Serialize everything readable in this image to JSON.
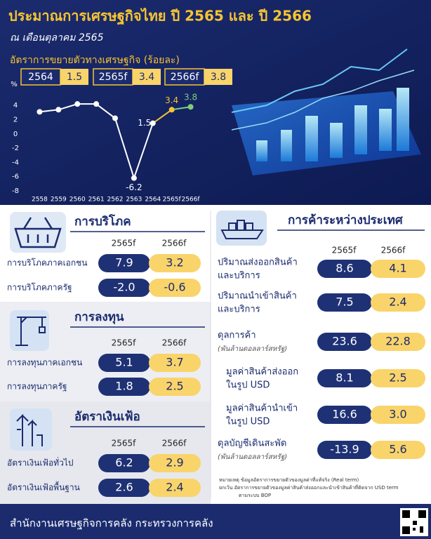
{
  "header": {
    "title": "ประมาณการเศรษฐกิจไทย ปี 2565 และ ปี 2566",
    "subtitle": "ณ เดือนตุลาคม 2565"
  },
  "chart_data": {
    "type": "line",
    "title": "อัตราการขยายตัวทางเศรษฐกิจ (ร้อยละ)",
    "y_label": "%",
    "badges": [
      {
        "year": "2564",
        "value": 1.5
      },
      {
        "year": "2565f",
        "value": 3.4
      },
      {
        "year": "2566f",
        "value": 3.8
      }
    ],
    "categories": [
      "2558",
      "2559",
      "2560",
      "2561",
      "2562",
      "2563",
      "2564",
      "2565f",
      "2566f"
    ],
    "values": [
      3.1,
      3.4,
      4.2,
      4.2,
      2.2,
      -6.2,
      1.5,
      3.4,
      3.8
    ],
    "value_labels": [
      null,
      null,
      null,
      null,
      null,
      "-6.2",
      "1.5",
      "3.4",
      "3.8"
    ],
    "point_colors": [
      "#ffffff",
      "#ffffff",
      "#ffffff",
      "#ffffff",
      "#ffffff",
      "#ffffff",
      "#ffffff",
      "#f6c431",
      "#7ccf7a"
    ],
    "ylim": [
      -8.5,
      5.5
    ],
    "yticks": [
      4,
      2,
      0,
      -2,
      -4,
      -6,
      -8
    ],
    "grid": false
  },
  "panels": [
    {
      "title": "การบริโภค",
      "columns": [
        "2565f",
        "2566f"
      ],
      "rows": [
        {
          "label": "การบริโภคภาคเอกชน",
          "values": [
            "7.9",
            "3.2"
          ]
        },
        {
          "label": "การบริโภคภาครัฐ",
          "values": [
            "-2.0",
            "-0.6"
          ]
        }
      ]
    },
    {
      "title": "การลงทุน",
      "columns": [
        "2565f",
        "2566f"
      ],
      "rows": [
        {
          "label": "การลงทุนภาคเอกชน",
          "values": [
            "5.1",
            "3.7"
          ]
        },
        {
          "label": "การลงทุนภาครัฐ",
          "values": [
            "1.8",
            "2.5"
          ]
        }
      ]
    },
    {
      "title": "อัตราเงินเฟ้อ",
      "columns": [
        "2565f",
        "2566f"
      ],
      "rows": [
        {
          "label": "อัตราเงินเฟ้อทั่วไป",
          "values": [
            "6.2",
            "2.9"
          ]
        },
        {
          "label": "อัตราเงินเฟ้อพื้นฐาน",
          "values": [
            "2.6",
            "2.4"
          ]
        }
      ]
    }
  ],
  "trade": {
    "title": "การค้าระหว่างประเทศ",
    "columns": [
      "2565f",
      "2566f"
    ],
    "rows": [
      {
        "lines": [
          "ปริมาณส่งออกสินค้า",
          "และบริการ"
        ],
        "values": [
          "8.6",
          "4.1"
        ]
      },
      {
        "lines": [
          "ปริมาณนำเข้าสินค้า",
          "และบริการ"
        ],
        "values": [
          "7.5",
          "2.4"
        ]
      },
      {
        "lines": [
          "ดุลการค้า",
          "(พันล้านดอลลาร์สหรัฐ)"
        ],
        "values": [
          "23.6",
          "22.8"
        ]
      },
      {
        "lines": [
          "มูลค่าสินค้าส่งออก",
          "ในรูป USD"
        ],
        "values": [
          "8.1",
          "2.5"
        ]
      },
      {
        "lines": [
          "มูลค่าสินค้านำเข้า",
          "ในรูป USD"
        ],
        "values": [
          "16.6",
          "3.0"
        ]
      },
      {
        "lines": [
          "ดุลบัญชีเดินสะพัด",
          "(พันล้านดอลลาร์สหรัฐ)"
        ],
        "values": [
          "-13.9",
          "5.6"
        ]
      }
    ],
    "notes": [
      "หมายเหตุ  ข้อมูลอัตราการขยายตัวของมูลค่าที่แท้จริง (Real term)",
      "ยกเว้น  อัตราการขยายตัวของมูลค่าสินค้าส่งออกและนำเข้าสินค้าที่คิดจาก USD term",
      "ตามระบบ BOP"
    ]
  },
  "footer": "สำนักงานเศรษฐกิจการคลัง กระทรวงการคลัง"
}
